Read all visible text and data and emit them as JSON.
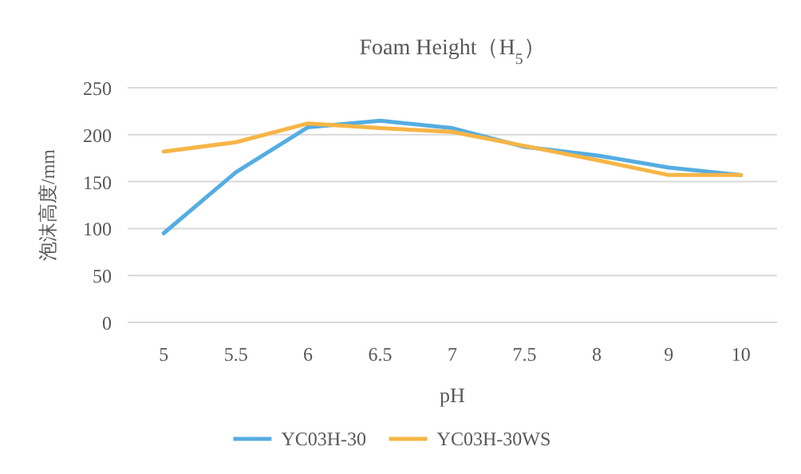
{
  "chart_data": {
    "type": "line",
    "title": "Foam Height（H$_{5}$）",
    "xlabel": "pH",
    "ylabel": "泡沫高度/mm",
    "categories": [
      "5",
      "5.5",
      "6",
      "6.5",
      "7",
      "7.5",
      "8",
      "9",
      "10"
    ],
    "series": [
      {
        "name": "YC03H-30",
        "color": "#55ade2",
        "values": [
          95,
          160,
          208,
          215,
          207,
          187,
          178,
          165,
          157
        ]
      },
      {
        "name": "YC03H-30WS",
        "color": "#f6b546",
        "values": [
          182,
          192,
          212,
          207,
          203,
          188,
          173,
          157,
          157
        ]
      }
    ],
    "ylim": [
      0,
      250
    ],
    "yticks": [
      0,
      50,
      100,
      150,
      200,
      250
    ],
    "grid": "y",
    "legend": "bottom"
  }
}
